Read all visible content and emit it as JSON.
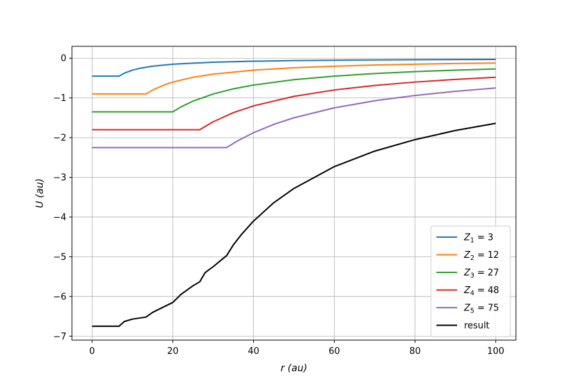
{
  "chart_data": {
    "type": "line",
    "title": "",
    "xlabel": "r (au)",
    "ylabel": "U (au)",
    "xlim": [
      -5,
      105
    ],
    "ylim": [
      -7.1,
      0.3
    ],
    "xticks": [
      0,
      20,
      40,
      60,
      80,
      100
    ],
    "yticks": [
      0,
      -1,
      -2,
      -3,
      -4,
      -5,
      -6,
      -7
    ],
    "xtick_labels": [
      "0",
      "20",
      "40",
      "60",
      "80",
      "100"
    ],
    "ytick_labels": [
      "0",
      "−1",
      "−2",
      "−3",
      "−4",
      "−5",
      "−6",
      "−7"
    ],
    "grid": true,
    "legend_position": "lower-right",
    "series": [
      {
        "name": "Z1 = 3",
        "sub": "1",
        "val": "3",
        "color": "#1f77b4",
        "x": [
          0,
          6.67,
          8,
          10,
          12,
          15,
          20,
          30,
          40,
          50,
          60,
          70,
          80,
          90,
          100
        ],
        "y": [
          -0.45,
          -0.45,
          -0.375,
          -0.3,
          -0.25,
          -0.2,
          -0.15,
          -0.1,
          -0.075,
          -0.06,
          -0.05,
          -0.043,
          -0.0375,
          -0.033,
          -0.03
        ]
      },
      {
        "name": "Z2 = 12",
        "sub": "2",
        "val": "12",
        "color": "#ff7f0e",
        "x": [
          0,
          13.33,
          15,
          18,
          20,
          25,
          30,
          40,
          50,
          60,
          70,
          80,
          90,
          100
        ],
        "y": [
          -0.9,
          -0.9,
          -0.8,
          -0.667,
          -0.6,
          -0.48,
          -0.4,
          -0.3,
          -0.24,
          -0.2,
          -0.171,
          -0.15,
          -0.133,
          -0.12
        ]
      },
      {
        "name": "Z3 = 27",
        "sub": "3",
        "val": "27",
        "color": "#2ca02c",
        "x": [
          0,
          20,
          22,
          25,
          30,
          35,
          40,
          50,
          60,
          70,
          80,
          90,
          100
        ],
        "y": [
          -1.35,
          -1.35,
          -1.227,
          -1.08,
          -0.9,
          -0.771,
          -0.675,
          -0.54,
          -0.45,
          -0.386,
          -0.3375,
          -0.3,
          -0.27
        ]
      },
      {
        "name": "Z4 = 48",
        "sub": "4",
        "val": "48",
        "color": "#d62728",
        "x": [
          0,
          26.67,
          30,
          35,
          40,
          50,
          60,
          70,
          80,
          90,
          100
        ],
        "y": [
          -1.8,
          -1.8,
          -1.6,
          -1.371,
          -1.2,
          -0.96,
          -0.8,
          -0.686,
          -0.6,
          -0.533,
          -0.48
        ]
      },
      {
        "name": "Z5 = 75",
        "sub": "5",
        "val": "75",
        "color": "#9467bd",
        "x": [
          0,
          33.33,
          36,
          40,
          45,
          50,
          60,
          70,
          80,
          90,
          100
        ],
        "y": [
          -2.25,
          -2.25,
          -2.083,
          -1.875,
          -1.667,
          -1.5,
          -1.25,
          -1.071,
          -0.9375,
          -0.833,
          -0.75
        ]
      },
      {
        "name": "result",
        "sub": "",
        "val": "",
        "color": "#000000",
        "x": [
          0,
          6.67,
          8,
          10,
          13.33,
          15,
          18,
          20,
          22,
          25,
          26.67,
          28,
          30,
          33.33,
          35,
          37,
          40,
          45,
          50,
          60,
          70,
          80,
          90,
          100
        ],
        "y": [
          -6.75,
          -6.75,
          -6.63,
          -6.57,
          -6.52,
          -6.4,
          -6.25,
          -6.15,
          -5.95,
          -5.73,
          -5.63,
          -5.4,
          -5.25,
          -4.97,
          -4.7,
          -4.44,
          -4.1,
          -3.64,
          -3.28,
          -2.73,
          -2.34,
          -2.05,
          -1.82,
          -1.64
        ]
      }
    ]
  }
}
